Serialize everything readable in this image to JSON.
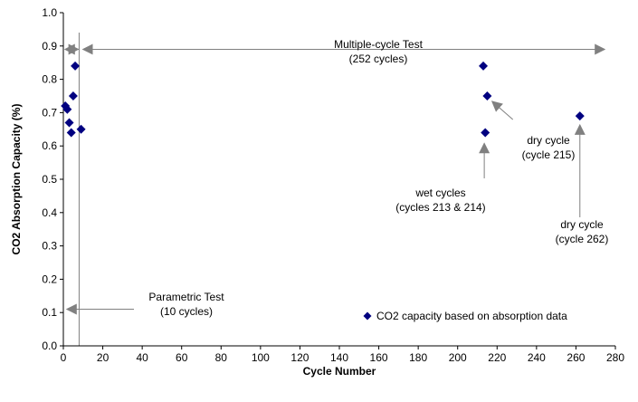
{
  "chart_data": {
    "type": "scatter",
    "xlabel": "Cycle Number",
    "ylabel": "CO2 Absorption Capacity (%)",
    "xlim": [
      0,
      280
    ],
    "ylim": [
      0.0,
      1.0
    ],
    "x_ticks": [
      "0",
      "20",
      "40",
      "60",
      "80",
      "100",
      "120",
      "140",
      "160",
      "180",
      "200",
      "220",
      "240",
      "260",
      "280"
    ],
    "y_ticks": [
      "0.0",
      "0.1",
      "0.2",
      "0.3",
      "0.4",
      "0.5",
      "0.6",
      "0.7",
      "0.8",
      "0.9",
      "1.0"
    ],
    "grid": false,
    "legend_position": "bottom-right",
    "marker_color": "#000080",
    "annotation_color": "#808080",
    "series": [
      {
        "name": "CO2 capacity based on absorption data",
        "points": [
          {
            "x": 1,
            "y": 0.72
          },
          {
            "x": 2,
            "y": 0.71
          },
          {
            "x": 3,
            "y": 0.67
          },
          {
            "x": 4,
            "y": 0.64
          },
          {
            "x": 5,
            "y": 0.75
          },
          {
            "x": 6,
            "y": 0.84
          },
          {
            "x": 9,
            "y": 0.65
          },
          {
            "x": 213,
            "y": 0.84
          },
          {
            "x": 214,
            "y": 0.64
          },
          {
            "x": 215,
            "y": 0.75
          },
          {
            "x": 262,
            "y": 0.69
          }
        ]
      }
    ],
    "annotations": [
      {
        "name": "multiple-cycle-test",
        "lines": [
          "Multiple-cycle Test",
          "(252 cycles)"
        ]
      },
      {
        "name": "parametric-test",
        "lines": [
          "Parametric Test",
          "(10 cycles)"
        ]
      },
      {
        "name": "wet-cycles",
        "lines": [
          "wet cycles",
          "(cycles 213 & 214)"
        ]
      },
      {
        "name": "dry-cycle-215",
        "lines": [
          "dry cycle",
          "(cycle 215)"
        ]
      },
      {
        "name": "dry-cycle-262",
        "lines": [
          "dry cycle",
          "(cycle 262)"
        ]
      }
    ]
  }
}
